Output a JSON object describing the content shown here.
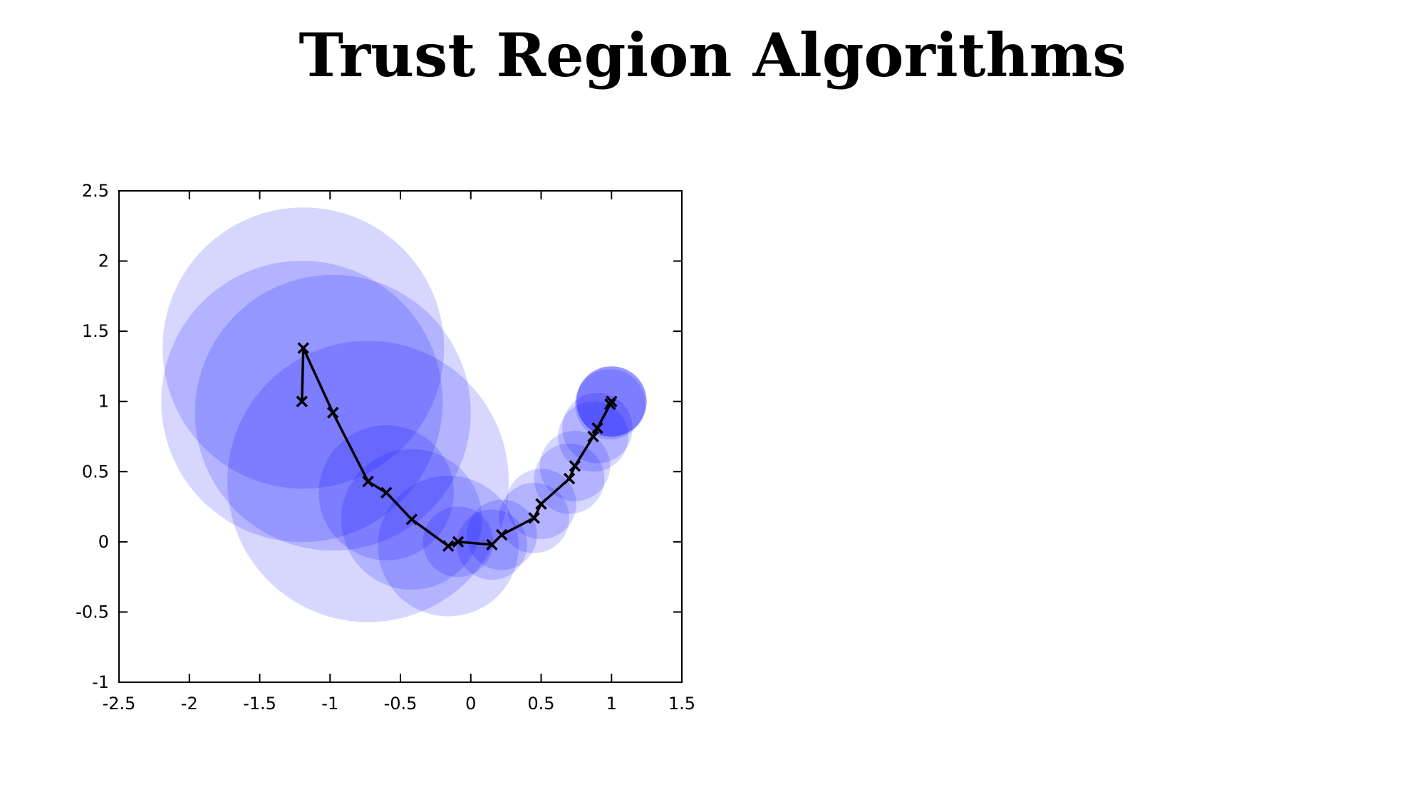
{
  "slide": {
    "title": "Trust Region Algorithms"
  },
  "chart_data": {
    "type": "scatter",
    "title": "",
    "xlabel": "",
    "ylabel": "",
    "xlim": [
      -2.5,
      1.5
    ],
    "ylim": [
      -1,
      2.5
    ],
    "xticks": [
      "-2.5",
      "-2",
      "-1.5",
      "-1",
      "-0.5",
      "0",
      "0.5",
      "1",
      "1.5"
    ],
    "yticks": [
      "2.5",
      "2",
      "1.5",
      "1",
      "0.5",
      "0",
      "-0.5",
      "-1"
    ],
    "grid": false,
    "legend": "none",
    "colors": {
      "region_fill": "#0000ff",
      "path_line": "#000000",
      "axis": "#000000"
    },
    "trust_regions": [
      {
        "cx": -1.19,
        "cy": 1.38,
        "r": 1.0
      },
      {
        "cx": -1.2,
        "cy": 1.0,
        "r": 1.0
      },
      {
        "cx": -0.98,
        "cy": 0.92,
        "r": 0.98
      },
      {
        "cx": -0.73,
        "cy": 0.43,
        "r": 1.0
      },
      {
        "cx": -0.6,
        "cy": 0.35,
        "r": 0.48
      },
      {
        "cx": -0.42,
        "cy": 0.16,
        "r": 0.5
      },
      {
        "cx": -0.16,
        "cy": -0.03,
        "r": 0.5
      },
      {
        "cx": -0.09,
        "cy": 0.0,
        "r": 0.25
      },
      {
        "cx": 0.15,
        "cy": -0.02,
        "r": 0.25
      },
      {
        "cx": 0.22,
        "cy": 0.05,
        "r": 0.25
      },
      {
        "cx": 0.45,
        "cy": 0.17,
        "r": 0.25
      },
      {
        "cx": 0.5,
        "cy": 0.27,
        "r": 0.25
      },
      {
        "cx": 0.7,
        "cy": 0.45,
        "r": 0.25
      },
      {
        "cx": 0.74,
        "cy": 0.54,
        "r": 0.25
      },
      {
        "cx": 0.87,
        "cy": 0.75,
        "r": 0.25
      },
      {
        "cx": 0.9,
        "cy": 0.81,
        "r": 0.25
      },
      {
        "cx": 0.99,
        "cy": 0.98,
        "r": 0.25
      },
      {
        "cx": 1.0,
        "cy": 1.0,
        "r": 0.25
      },
      {
        "cx": 1.0,
        "cy": 1.0,
        "r": 0.25
      },
      {
        "cx": 1.0,
        "cy": 1.0,
        "r": 0.25
      }
    ],
    "path": {
      "x": [
        -1.2,
        -1.19,
        -0.98,
        -0.73,
        -0.6,
        -0.42,
        -0.16,
        -0.09,
        0.15,
        0.22,
        0.45,
        0.5,
        0.7,
        0.74,
        0.87,
        0.9,
        0.99,
        1.0
      ],
      "y": [
        1.0,
        1.38,
        0.92,
        0.43,
        0.35,
        0.16,
        -0.03,
        0.0,
        -0.02,
        0.05,
        0.17,
        0.27,
        0.45,
        0.54,
        0.75,
        0.81,
        0.98,
        1.0
      ]
    }
  }
}
